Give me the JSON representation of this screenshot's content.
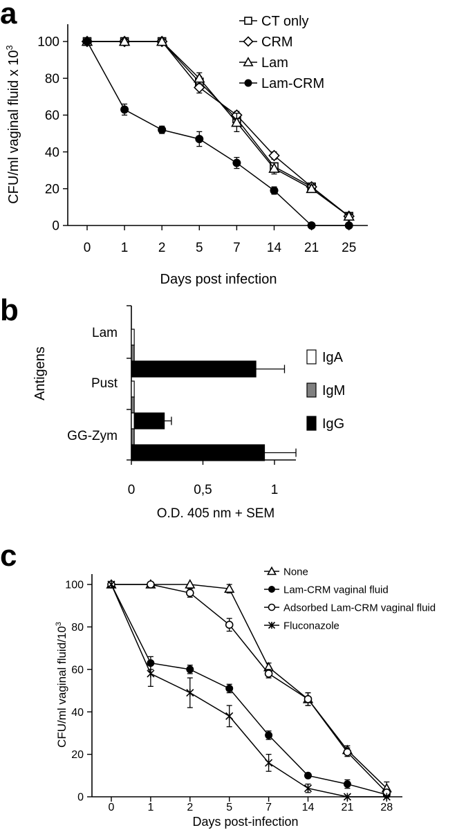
{
  "chart_data": [
    {
      "panel": "a",
      "type": "line",
      "categories": [
        "0",
        "1",
        "2",
        "5",
        "7",
        "14",
        "21",
        "25"
      ],
      "xlabel": "Days post infection",
      "ylabel": "CFU/ml vaginal fluid x 10",
      "ylabel_sup": "3",
      "ylim": [
        0,
        100
      ],
      "yticks": [
        0,
        20,
        40,
        60,
        80,
        100
      ],
      "legend_position": "top-right",
      "series": [
        {
          "name": "CT only",
          "marker": "square-open",
          "values": [
            100,
            100,
            100,
            78,
            58,
            32,
            21,
            5
          ],
          "errors": [
            0,
            0,
            0,
            3,
            3,
            2,
            2,
            1
          ]
        },
        {
          "name": "CRM",
          "marker": "diamond-open",
          "values": [
            100,
            100,
            100,
            75,
            60,
            38,
            21,
            5
          ],
          "errors": [
            0,
            0,
            0,
            3,
            2,
            2,
            2,
            1
          ]
        },
        {
          "name": "Lam",
          "marker": "triangle-open",
          "values": [
            100,
            100,
            100,
            80,
            56,
            31,
            20,
            5
          ],
          "errors": [
            0,
            0,
            0,
            3,
            5,
            3,
            2,
            1
          ]
        },
        {
          "name": "Lam-CRM",
          "marker": "circle-filled",
          "values": [
            100,
            63,
            52,
            47,
            34,
            19,
            0,
            0
          ],
          "errors": [
            0,
            3,
            2,
            4,
            3,
            2,
            0,
            0
          ]
        }
      ]
    },
    {
      "panel": "b",
      "type": "bar",
      "orientation": "horizontal",
      "categories": [
        "Lam",
        "Pust",
        "GG-Zym"
      ],
      "xlabel": "O.D. 405 nm + SEM",
      "ylabel": "Antigens",
      "xlim": [
        0,
        1.2
      ],
      "xticks": [
        "0",
        "0,5",
        "1"
      ],
      "xtick_values": [
        0,
        0.5,
        1
      ],
      "legend_position": "right",
      "series": [
        {
          "name": "IgA",
          "color": "#ffffff",
          "values": [
            0.02,
            0.02,
            0.02
          ],
          "errors": [
            0,
            0,
            0
          ]
        },
        {
          "name": "IgM",
          "color": "#808080",
          "values": [
            0.02,
            0.02,
            0.02
          ],
          "errors": [
            0,
            0,
            0
          ]
        },
        {
          "name": "IgG",
          "color": "#000000",
          "values": [
            0.87,
            0.23,
            0.93
          ],
          "errors": [
            0.2,
            0.05,
            0.22
          ]
        }
      ]
    },
    {
      "panel": "c",
      "type": "line",
      "categories": [
        "0",
        "1",
        "2",
        "5",
        "7",
        "14",
        "21",
        "28"
      ],
      "xlabel": "Days post-infection",
      "ylabel": "CFU/ml vaginal fluid/10",
      "ylabel_sup": "3",
      "ylim": [
        0,
        100
      ],
      "yticks": [
        0,
        20,
        40,
        60,
        80,
        100
      ],
      "legend_position": "top-right",
      "series": [
        {
          "name": "None",
          "marker": "triangle-open",
          "values": [
            100,
            100,
            100,
            98,
            61,
            46,
            22,
            4
          ],
          "errors": [
            0,
            0,
            0,
            2,
            2,
            3,
            2,
            3
          ]
        },
        {
          "name": "Lam-CRM vaginal fluid",
          "marker": "circle-filled",
          "values": [
            100,
            63,
            60,
            51,
            29,
            10,
            6,
            1
          ],
          "errors": [
            0,
            3,
            2,
            2,
            2,
            1,
            2,
            1
          ]
        },
        {
          "name": "Adsorbed Lam-CRM vaginal fluid",
          "marker": "circle-open",
          "values": [
            100,
            100,
            96,
            81,
            58,
            46,
            21,
            2
          ],
          "errors": [
            0,
            0,
            2,
            3,
            2,
            3,
            2,
            1
          ]
        },
        {
          "name": "Fluconazole",
          "marker": "asterisk",
          "values": [
            100,
            58,
            49,
            38,
            16,
            4,
            0,
            0
          ],
          "errors": [
            0,
            6,
            7,
            5,
            4,
            2,
            0,
            0
          ]
        }
      ]
    }
  ]
}
